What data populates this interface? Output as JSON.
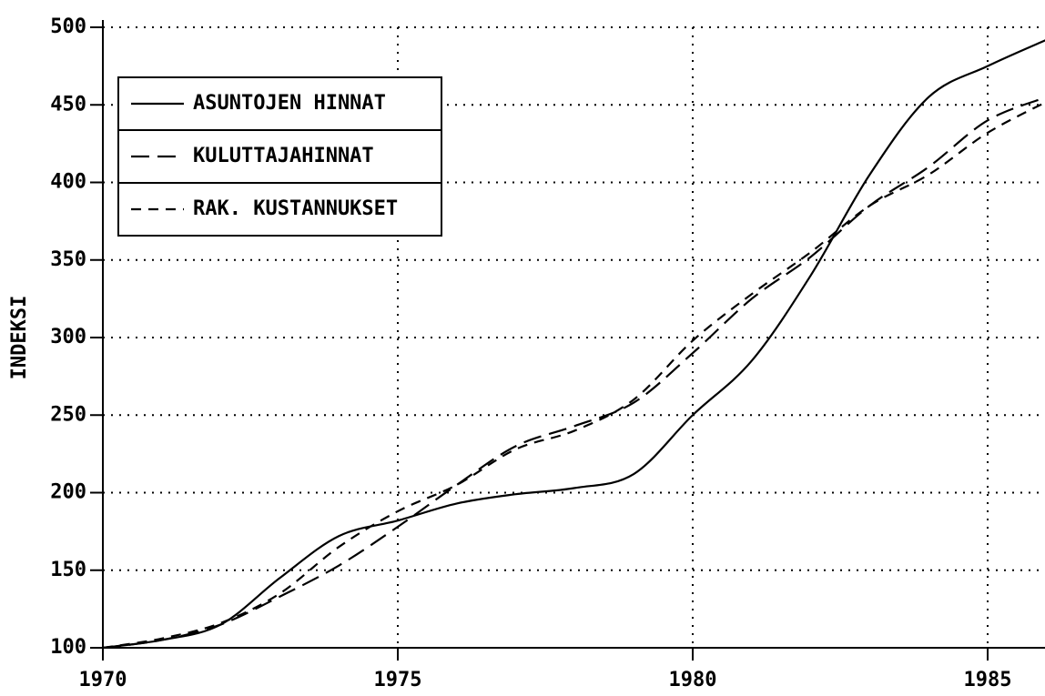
{
  "chart_data": {
    "type": "line",
    "y_label": "INDEKSI",
    "x": [
      1970,
      1971,
      1972,
      1973,
      1974,
      1975,
      1976,
      1977,
      1978,
      1979,
      1980,
      1981,
      1982,
      1983,
      1984,
      1985,
      1986
    ],
    "series": [
      {
        "name": "ASUNTOJEN HINNAT",
        "color": "#000000",
        "line_style": "solid",
        "values": [
          100,
          105,
          115,
          145,
          172,
          182,
          193,
          199,
          203,
          212,
          250,
          285,
          340,
          405,
          455,
          475,
          492
        ]
      },
      {
        "name": "KULUTTAJAHINNAT",
        "color": "#000000",
        "line_style": "long-dash",
        "values": [
          100,
          105,
          115,
          133,
          153,
          178,
          205,
          230,
          243,
          258,
          290,
          325,
          352,
          385,
          410,
          440,
          455
        ]
      },
      {
        "name": "RAK. KUSTANNUKSET",
        "color": "#000000",
        "line_style": "dash",
        "values": [
          100,
          106,
          116,
          135,
          165,
          188,
          205,
          228,
          240,
          260,
          298,
          328,
          355,
          385,
          405,
          432,
          452
        ]
      }
    ],
    "xlim": [
      1970,
      1986
    ],
    "xticks": [
      1970,
      1975,
      1980,
      1985
    ],
    "ylim": [
      100,
      500
    ],
    "yticks": [
      100,
      150,
      200,
      250,
      300,
      350,
      400,
      450,
      500
    ],
    "grid": true,
    "legend": "upper left"
  }
}
